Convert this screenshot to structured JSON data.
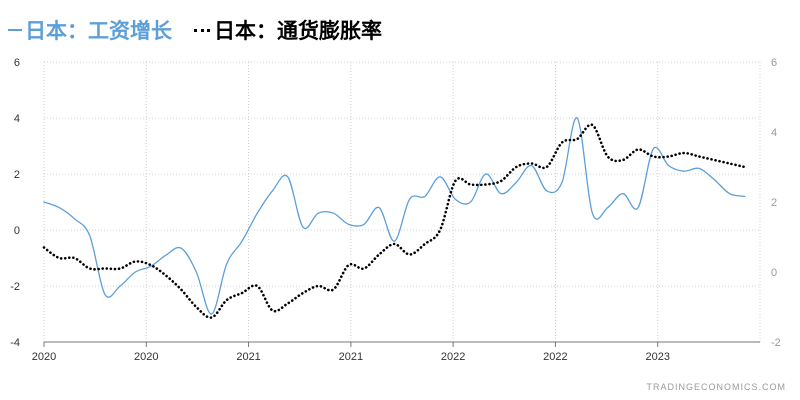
{
  "legend": {
    "items": [
      {
        "label": "日本：工资增长",
        "color": "#5c9fd8",
        "style": "solid"
      },
      {
        "label": "日本：通货膨胀率",
        "color": "#000000",
        "style": "dotted"
      }
    ]
  },
  "watermark": "TRADINGECONOMICS.COM",
  "chart_data": {
    "type": "line",
    "title": "",
    "xlabel": "",
    "ylabel": "",
    "grid": true,
    "x_ticks": [
      "2020",
      "2020",
      "2021",
      "2021",
      "2022",
      "2022",
      "2023"
    ],
    "x_range": [
      0,
      47
    ],
    "y_left": {
      "range": [
        -4,
        6
      ],
      "ticks": [
        6,
        4,
        2,
        0,
        -2,
        -4
      ]
    },
    "y_right": {
      "range": [
        -2,
        6
      ],
      "ticks": [
        6,
        4,
        2,
        0,
        -2
      ]
    },
    "series": [
      {
        "name": "日本：工资增长",
        "axis": "left",
        "color": "#5c9fd8",
        "style": "solid",
        "x": [
          0,
          1,
          2,
          3,
          4,
          5,
          6,
          7,
          8,
          9,
          10,
          11,
          12,
          13,
          14,
          15,
          16,
          17,
          18,
          19,
          20,
          21,
          22,
          23,
          24,
          25,
          26,
          27,
          28,
          29,
          30,
          31,
          32,
          33,
          34,
          35,
          36,
          37,
          38,
          39,
          40,
          41,
          42,
          43,
          44,
          45,
          46
        ],
        "values": [
          1.0,
          0.8,
          0.4,
          -0.2,
          -2.3,
          -2.0,
          -1.5,
          -1.3,
          -0.9,
          -0.65,
          -1.5,
          -3.0,
          -1.2,
          -0.4,
          0.6,
          1.4,
          1.9,
          0.1,
          0.6,
          0.6,
          0.2,
          0.2,
          0.8,
          -0.4,
          1.1,
          1.2,
          1.9,
          1.1,
          1.0,
          2.0,
          1.3,
          1.7,
          2.3,
          1.4,
          1.7,
          4.0,
          0.6,
          0.8,
          1.3,
          0.8,
          2.9,
          2.3,
          2.1,
          2.2,
          1.8,
          1.3,
          1.2
        ]
      },
      {
        "name": "日本：通货膨胀率",
        "axis": "right",
        "color": "#000000",
        "style": "dotted",
        "x": [
          0,
          1,
          2,
          3,
          4,
          5,
          6,
          7,
          8,
          9,
          10,
          11,
          12,
          13,
          14,
          15,
          16,
          17,
          18,
          19,
          20,
          21,
          22,
          23,
          24,
          25,
          26,
          27,
          28,
          29,
          30,
          31,
          32,
          33,
          34,
          35,
          36,
          37,
          38,
          39,
          40,
          41,
          42,
          43,
          44,
          45,
          46
        ],
        "values": [
          0.7,
          0.4,
          0.4,
          0.1,
          0.1,
          0.1,
          0.3,
          0.2,
          -0.1,
          -0.5,
          -1.0,
          -1.3,
          -0.8,
          -0.6,
          -0.4,
          -1.1,
          -0.9,
          -0.6,
          -0.4,
          -0.5,
          0.2,
          0.1,
          0.5,
          0.8,
          0.5,
          0.8,
          1.2,
          2.6,
          2.5,
          2.5,
          2.6,
          3.0,
          3.1,
          3.0,
          3.7,
          3.8,
          4.2,
          3.3,
          3.2,
          3.5,
          3.3,
          3.3,
          3.4,
          3.3,
          3.2,
          3.1,
          3.0
        ]
      }
    ]
  }
}
